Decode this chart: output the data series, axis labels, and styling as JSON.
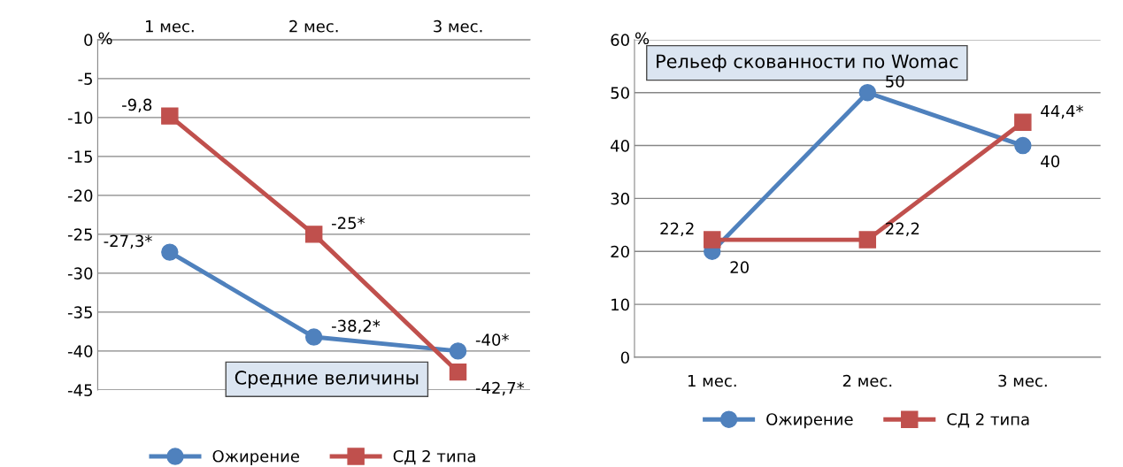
{
  "chart_data": [
    {
      "type": "line",
      "title": "Средние величины",
      "ylabel": "%",
      "categories": [
        "1 мес.",
        "2 мес.",
        "3 мес."
      ],
      "ylim": [
        -45,
        0
      ],
      "yticks": [
        0,
        -5,
        -10,
        -15,
        -20,
        -25,
        -30,
        -35,
        -40,
        -45
      ],
      "grid": "y",
      "legend": "bottom",
      "series": [
        {
          "name": "Ожирение",
          "color": "#4f81bd",
          "marker": "circle",
          "values": [
            -27.3,
            -38.2,
            -40
          ],
          "value_labels": [
            "-27,3*",
            "-38,2*",
            "-40*"
          ]
        },
        {
          "name": "СД 2 типа",
          "color": "#c0504d",
          "marker": "square",
          "values": [
            -9.8,
            -25,
            -42.7
          ],
          "value_labels": [
            "-9,8",
            "-25*",
            "-42,7*"
          ]
        }
      ]
    },
    {
      "type": "line",
      "title": "Рельеф скованности по Womac",
      "ylabel": "%",
      "categories": [
        "1 мес.",
        "2 мес.",
        "3 мес."
      ],
      "ylim": [
        0,
        60
      ],
      "yticks": [
        0,
        10,
        20,
        30,
        40,
        50,
        60
      ],
      "grid": "y",
      "legend": "bottom",
      "series": [
        {
          "name": "Ожирение",
          "color": "#4f81bd",
          "marker": "circle",
          "values": [
            20,
            50,
            40
          ],
          "value_labels": [
            "20",
            "50",
            "40"
          ]
        },
        {
          "name": "СД 2 типа",
          "color": "#c0504d",
          "marker": "square",
          "values": [
            22.2,
            22.2,
            44.4
          ],
          "value_labels": [
            "22,2",
            "22,2",
            "44,4*"
          ]
        }
      ]
    }
  ]
}
